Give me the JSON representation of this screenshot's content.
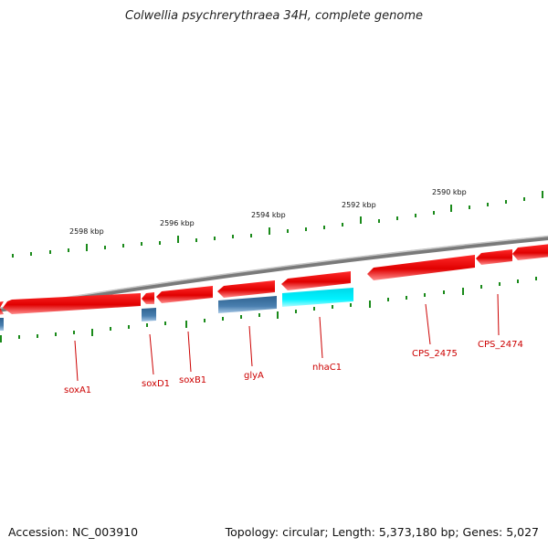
{
  "title": "Colwellia psychrerythraea 34H, complete genome",
  "footer": {
    "accession": "Accession: NC_003910",
    "summary": "Topology: circular; Length: 5,373,180 bp; Genes: 5,027"
  },
  "colors": {
    "backbone": "#8f8f8f",
    "forward_gene": "#e60000",
    "reverse_gene": "#3f78a8",
    "rna_gene": "#00e5ee",
    "tick": "#1a8a1a",
    "label": "#cc0000"
  },
  "scale_labels": [
    "2598 kbp",
    "2596 kbp",
    "2594 kbp",
    "2592 kbp",
    "2590 kbp"
  ],
  "gene_labels": [
    "soxA1",
    "soxD1",
    "soxB1",
    "glyA",
    "nhaC1",
    "CPS_2475",
    "CPS_2474"
  ]
}
